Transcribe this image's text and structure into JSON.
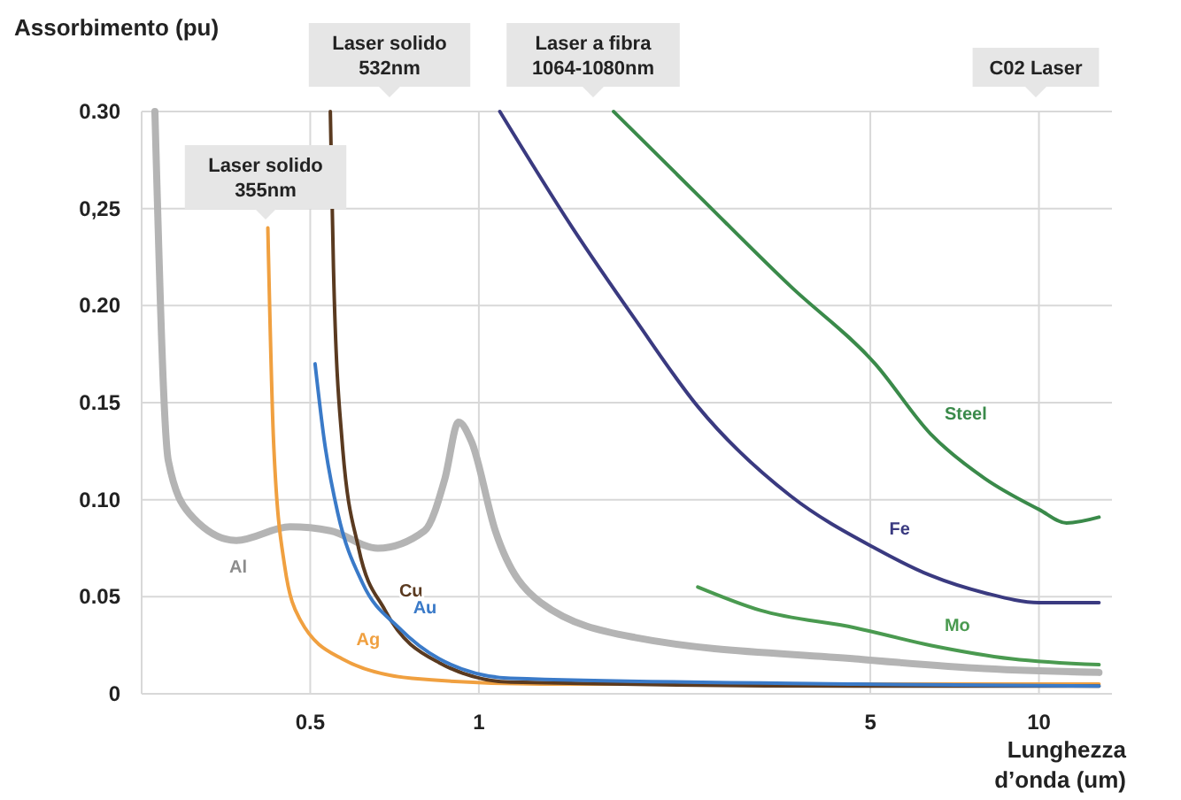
{
  "chart_data": {
    "type": "line",
    "ylabel": "Assorbimento (pu)",
    "xlabel": "Lunghezza\nd’onda (um)",
    "log": "x",
    "xlim": [
      0.25,
      13.5
    ],
    "xticks": [
      0.5,
      1,
      5,
      10
    ],
    "ylim": [
      0,
      0.3
    ],
    "yticks": [
      {
        "value": 0,
        "label": "0"
      },
      {
        "value": 0.05,
        "label": "0.05"
      },
      {
        "value": 0.1,
        "label": "0.10"
      },
      {
        "value": 0.15,
        "label": "0.15"
      },
      {
        "value": 0.2,
        "label": "0.20"
      },
      {
        "value": 0.25,
        "label": "0,25"
      },
      {
        "value": 0.3,
        "label": "0.30"
      }
    ],
    "grid": true,
    "marker": "none",
    "line_style": "solid",
    "series": [
      {
        "name": "Al",
        "color": "#b4b4b4",
        "x": [
          0.264,
          0.279,
          0.304,
          0.369,
          0.46,
          0.543,
          0.66,
          0.8,
          0.87,
          0.92,
          0.97,
          1.07,
          1.29,
          1.9,
          4.7,
          8.0,
          12.8
        ],
        "values": [
          0.3,
          0.12,
          0.093,
          0.079,
          0.086,
          0.084,
          0.075,
          0.084,
          0.111,
          0.14,
          0.13,
          0.084,
          0.047,
          0.029,
          0.018,
          0.013,
          0.011
        ]
      },
      {
        "name": "Ag",
        "color": "#f0a040",
        "x": [
          0.42,
          0.43,
          0.45,
          0.48,
          0.57,
          0.76,
          1.29,
          4.7,
          12.8
        ],
        "values": [
          0.24,
          0.13,
          0.066,
          0.038,
          0.018,
          0.008,
          0.005,
          0.005,
          0.005
        ]
      },
      {
        "name": "Cu",
        "color": "#5a3a20",
        "x": [
          0.543,
          0.55,
          0.57,
          0.61,
          0.68,
          0.85,
          1.14,
          4.7,
          12.8
        ],
        "values": [
          0.3,
          0.22,
          0.13,
          0.075,
          0.043,
          0.016,
          0.006,
          0.004,
          0.004
        ]
      },
      {
        "name": "Au",
        "color": "#3a7ac8",
        "x": [
          0.51,
          0.53,
          0.56,
          0.62,
          0.72,
          0.85,
          1.14,
          4.7,
          12.8
        ],
        "values": [
          0.17,
          0.13,
          0.093,
          0.057,
          0.034,
          0.018,
          0.008,
          0.005,
          0.004
        ]
      },
      {
        "name": "Fe",
        "color": "#3a3a80",
        "x": [
          1.09,
          1.47,
          1.9,
          2.46,
          3.6,
          5.1,
          6.4,
          8.0,
          10,
          12.8
        ],
        "values": [
          0.3,
          0.24,
          0.193,
          0.148,
          0.102,
          0.075,
          0.061,
          0.052,
          0.047,
          0.047
        ]
      },
      {
        "name": "Steel",
        "color": "#3a8a4a",
        "x": [
          1.74,
          2.46,
          3.6,
          5.1,
          6.4,
          8.0,
          10,
          11.2,
          12.8
        ],
        "values": [
          0.3,
          0.257,
          0.21,
          0.17,
          0.134,
          0.111,
          0.095,
          0.088,
          0.091
        ]
      },
      {
        "name": "Mo",
        "color": "#4a9a50",
        "x": [
          2.46,
          3.18,
          4.7,
          6.4,
          8.95,
          12.8
        ],
        "values": [
          0.055,
          0.043,
          0.034,
          0.025,
          0.018,
          0.015
        ]
      }
    ],
    "annotations": [
      "Laser solido\n355nm",
      "Laser solido\n532nm",
      "Laser a fibra\n1064-1080nm",
      "C02 Laser"
    ]
  }
}
